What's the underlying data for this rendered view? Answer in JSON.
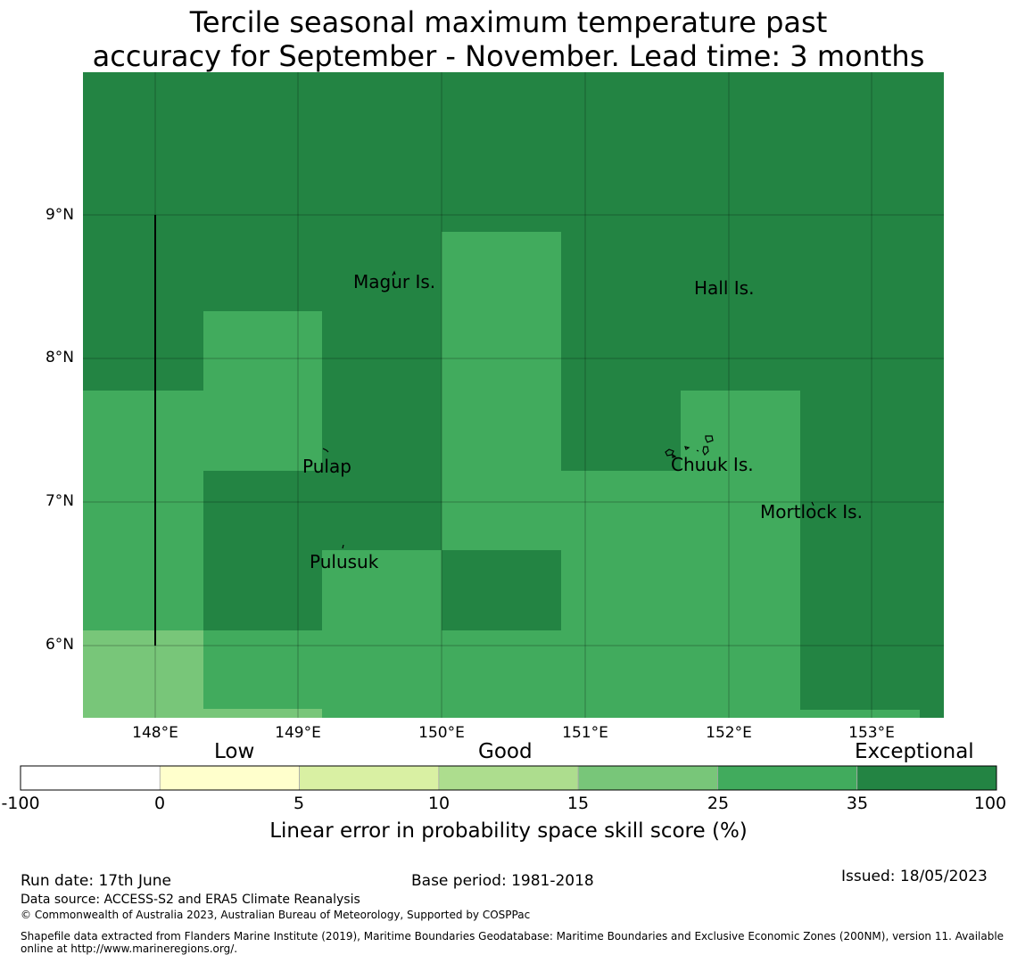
{
  "title": {
    "line1": "Tercile seasonal maximum temperature past",
    "line2": "accuracy for September - November. Lead time: 3 months"
  },
  "map": {
    "lat_labels": [
      "9°N",
      "8°N",
      "7°N",
      "6°N"
    ],
    "lon_labels": [
      "148°E",
      "149°E",
      "150°E",
      "151°E",
      "152°E",
      "153°E"
    ],
    "places": [
      {
        "name": "Magur Is.",
        "lon": 149.65,
        "lat": 8.53
      },
      {
        "name": "Hall Is.",
        "lon": 151.97,
        "lat": 8.49
      },
      {
        "name": "Pulap",
        "lon": 149.21,
        "lat": 7.24
      },
      {
        "name": "Chuuk Is.",
        "lon": 151.9,
        "lat": 7.26
      },
      {
        "name": "Mortlock Is.",
        "lon": 152.59,
        "lat": 6.93
      },
      {
        "name": "Pulusuk",
        "lon": 149.33,
        "lat": 6.58
      }
    ]
  },
  "colorbar": {
    "categories": [
      "Low",
      "Good",
      "Exceptional"
    ],
    "ticks": [
      "-100",
      "0",
      "5",
      "10",
      "15",
      "25",
      "35",
      "100"
    ],
    "colors": [
      "#ffffff",
      "#ffffcc",
      "#d9f0a3",
      "#addd8e",
      "#78c679",
      "#41ab5d",
      "#238443"
    ],
    "label": "Linear error in probability space skill score (%)"
  },
  "footer": {
    "run_date": "Run date: 17th June",
    "base_period": "Base period: 1981-2018",
    "issued": "Issued: 18/05/2023",
    "data_source": "Data source: ACCESS-S2 and ERA5 Climate Reanalysis",
    "copyright": "© Commonwealth of Australia 2023, Australian Bureau of Meteorology, Supported by COSPPac",
    "shapefile_line1": "Shapefile data extracted from Flanders Marine Institute (2019), Maritime Boundaries Geodatabase: Maritime Boundaries and Exclusive Economic Zones (200NM), version 11. Available",
    "shapefile_line2": "online at http://www.marineregions.org/."
  }
}
